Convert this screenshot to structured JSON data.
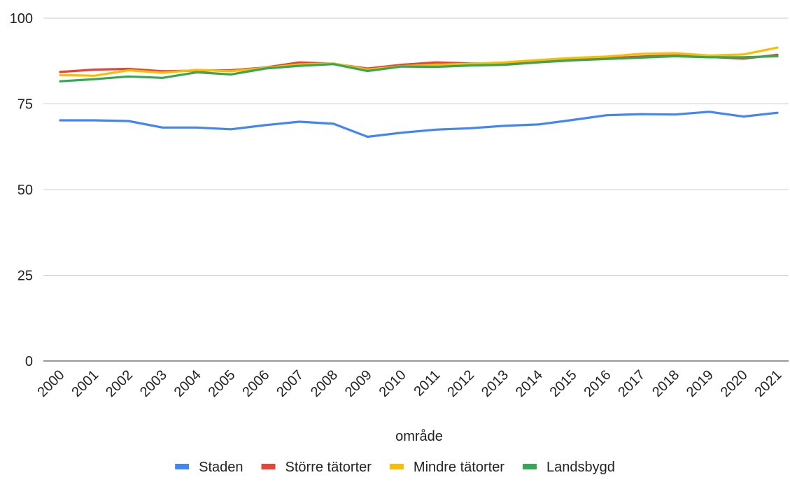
{
  "chart_data": {
    "type": "line",
    "title": "",
    "xlabel": "område",
    "ylabel": "",
    "ylim": [
      0,
      100
    ],
    "yticks": [
      "0",
      "25",
      "50",
      "75",
      "100"
    ],
    "grid": true,
    "legend": "bottom",
    "categories": [
      "2000",
      "2001",
      "2002",
      "2003",
      "2004",
      "2005",
      "2006",
      "2007",
      "2008",
      "2009",
      "2010",
      "2011",
      "2012",
      "2013",
      "2014",
      "2015",
      "2016",
      "2017",
      "2018",
      "2019",
      "2020",
      "2021"
    ],
    "series": [
      {
        "name": "Staden",
        "color": "#4285f4",
        "values": [
          70.2,
          70.2,
          70.0,
          68.1,
          68.1,
          67.6,
          68.8,
          69.8,
          69.2,
          65.4,
          66.6,
          67.5,
          67.9,
          68.6,
          69.0,
          70.3,
          71.7,
          72.0,
          71.9,
          72.7,
          71.3,
          72.4
        ]
      },
      {
        "name": "Större tätorter",
        "color": "#ea4335",
        "values": [
          84.3,
          85.0,
          85.2,
          84.5,
          84.7,
          84.8,
          85.6,
          87.1,
          86.7,
          85.3,
          86.4,
          87.1,
          86.8,
          86.8,
          87.4,
          87.9,
          88.3,
          88.8,
          89.1,
          88.7,
          88.2,
          89.3
        ]
      },
      {
        "name": "Mindre tätorter",
        "color": "#fbbc04",
        "values": [
          83.4,
          83.2,
          84.8,
          84.1,
          84.9,
          84.5,
          85.5,
          86.5,
          86.8,
          85.0,
          86.0,
          86.4,
          86.7,
          87.1,
          87.8,
          88.4,
          88.8,
          89.6,
          89.8,
          89.1,
          89.4,
          91.4
        ]
      },
      {
        "name": "Landsbygd",
        "color": "#34a853",
        "values": [
          81.6,
          82.2,
          83.0,
          82.6,
          84.2,
          83.6,
          85.3,
          86.1,
          86.6,
          84.6,
          85.9,
          85.8,
          86.2,
          86.4,
          87.1,
          87.7,
          88.1,
          88.5,
          88.9,
          88.6,
          88.6,
          88.9
        ]
      }
    ]
  }
}
